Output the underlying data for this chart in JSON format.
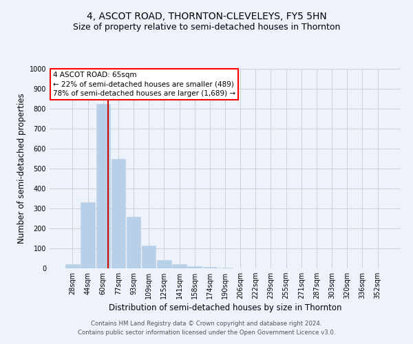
{
  "title": "4, ASCOT ROAD, THORNTON-CLEVELEYS, FY5 5HN",
  "subtitle": "Size of property relative to semi-detached houses in Thornton",
  "xlabel": "Distribution of semi-detached houses by size in Thornton",
  "ylabel": "Number of semi-detached properties",
  "footer_line1": "Contains HM Land Registry data © Crown copyright and database right 2024.",
  "footer_line2": "Contains public sector information licensed under the Open Government Licence v3.0.",
  "bin_labels": [
    "28sqm",
    "44sqm",
    "60sqm",
    "77sqm",
    "93sqm",
    "109sqm",
    "125sqm",
    "141sqm",
    "158sqm",
    "174sqm",
    "190sqm",
    "206sqm",
    "222sqm",
    "239sqm",
    "255sqm",
    "271sqm",
    "287sqm",
    "303sqm",
    "320sqm",
    "336sqm",
    "352sqm"
  ],
  "bar_values": [
    20,
    330,
    825,
    550,
    260,
    115,
    43,
    20,
    10,
    7,
    3,
    0,
    0,
    0,
    0,
    0,
    0,
    0,
    0,
    0,
    0
  ],
  "bar_color": "#b8cfe8",
  "bar_edgecolor": "#b8cfe8",
  "property_line_x": 2.35,
  "property_line_color": "#cc0000",
  "annotation_box_text": "4 ASCOT ROAD: 65sqm\n← 22% of semi-detached houses are smaller (489)\n78% of semi-detached houses are larger (1,689) →",
  "ylim": [
    0,
    1000
  ],
  "yticks": [
    0,
    100,
    200,
    300,
    400,
    500,
    600,
    700,
    800,
    900,
    1000
  ],
  "grid_color": "#d0d0d0",
  "bg_color": "#eef2fa",
  "title_fontsize": 10,
  "subtitle_fontsize": 9,
  "axis_label_fontsize": 8.5,
  "tick_fontsize": 7,
  "footer_fontsize": 6.2,
  "annotation_fontsize": 7.5
}
